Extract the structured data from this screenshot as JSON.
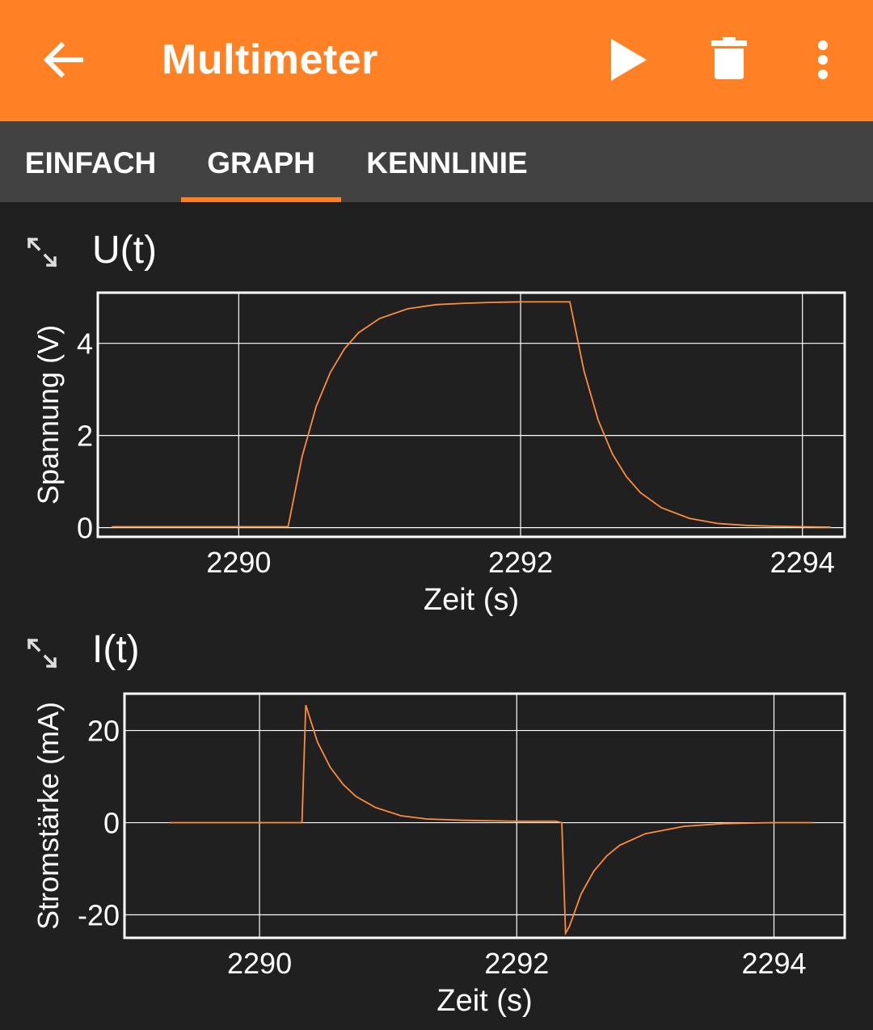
{
  "app": {
    "title": "Multimeter"
  },
  "toolbar": {
    "back_icon": "arrow-left-icon",
    "play_icon": "play-icon",
    "delete_icon": "trash-icon",
    "more_icon": "more-vert-icon"
  },
  "tabs": [
    {
      "label": "EINFACH",
      "active": false
    },
    {
      "label": "GRAPH",
      "active": true
    },
    {
      "label": "KENNLINIE",
      "active": false
    }
  ],
  "colors": {
    "accent": "#ff8123",
    "tabbar": "#424242",
    "background": "#202020",
    "trace": "#ff8c3a"
  },
  "graphs": [
    {
      "title": "U(t)",
      "expand_icon": "expand-icon"
    },
    {
      "title": "I(t)",
      "expand_icon": "expand-icon"
    }
  ],
  "chart_data": [
    {
      "type": "line",
      "title": "U(t)",
      "xlabel": "Zeit (s)",
      "ylabel": "Spannung (V)",
      "xlim": [
        2289.0,
        2294.3
      ],
      "ylim": [
        -0.2,
        5.1
      ],
      "xticks": [
        2290,
        2292,
        2294
      ],
      "yticks": [
        0,
        2,
        4
      ],
      "grid": true,
      "series": [
        {
          "x": [
            2289.1,
            2289.5,
            2290.0,
            2290.35,
            2290.45,
            2290.55,
            2290.65,
            2290.75,
            2290.85,
            2291.0,
            2291.2,
            2291.4,
            2291.6,
            2291.8,
            2292.0,
            2292.2,
            2292.35,
            2292.45,
            2292.55,
            2292.65,
            2292.75,
            2292.85,
            2293.0,
            2293.2,
            2293.4,
            2293.6,
            2293.8,
            2294.0,
            2294.2
          ],
          "y": [
            0.02,
            0.02,
            0.02,
            0.02,
            1.55,
            2.63,
            3.37,
            3.88,
            4.23,
            4.54,
            4.75,
            4.84,
            4.87,
            4.89,
            4.9,
            4.9,
            4.9,
            3.4,
            2.34,
            1.61,
            1.11,
            0.76,
            0.43,
            0.2,
            0.09,
            0.05,
            0.03,
            0.02,
            0.01
          ]
        }
      ]
    },
    {
      "type": "line",
      "title": "I(t)",
      "xlabel": "Zeit (s)",
      "ylabel": "Stromstärke (mA)",
      "xlim": [
        2288.95,
        2294.55
      ],
      "ylim": [
        -25,
        28
      ],
      "xticks": [
        2290,
        2292,
        2294
      ],
      "yticks": [
        -20,
        0,
        20
      ],
      "grid": true,
      "series": [
        {
          "x": [
            2289.3,
            2289.8,
            2290.3,
            2290.33,
            2290.36,
            2290.45,
            2290.55,
            2290.65,
            2290.75,
            2290.9,
            2291.1,
            2291.3,
            2291.6,
            2292.0,
            2292.3,
            2292.35,
            2292.38,
            2292.41,
            2292.5,
            2292.6,
            2292.7,
            2292.8,
            2293.0,
            2293.3,
            2293.6,
            2294.0,
            2294.3
          ],
          "y": [
            0.0,
            0.0,
            0.0,
            0.0,
            25.5,
            17.5,
            12.0,
            8.3,
            5.7,
            3.3,
            1.5,
            0.8,
            0.5,
            0.3,
            0.3,
            0.0,
            -24.0,
            -22.5,
            -15.5,
            -10.5,
            -7.2,
            -4.9,
            -2.4,
            -0.8,
            -0.2,
            0.0,
            0.0
          ]
        }
      ]
    }
  ]
}
